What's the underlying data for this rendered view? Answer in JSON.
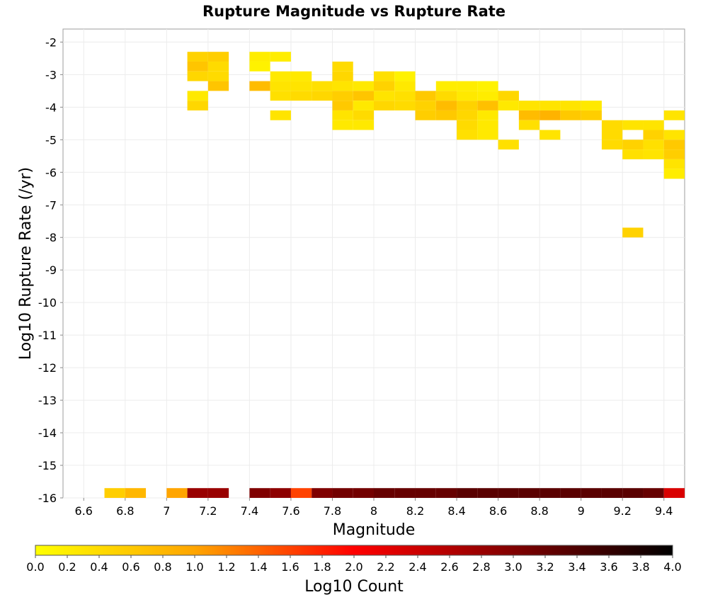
{
  "chart_data": {
    "type": "heatmap",
    "title": "Rupture Magnitude vs Rupture Rate",
    "xlabel": "Magnitude",
    "ylabel": "Log10 Rupture Rate (/yr)",
    "xlim": [
      6.5,
      9.5
    ],
    "ylim": [
      -16.0,
      -1.6
    ],
    "x_ticks": [
      "6.6",
      "6.8",
      "7",
      "7.2",
      "7.4",
      "7.6",
      "7.8",
      "8",
      "8.2",
      "8.4",
      "8.6",
      "8.8",
      "9",
      "9.2",
      "9.4"
    ],
    "y_ticks": [
      "-2",
      "-3",
      "-4",
      "-5",
      "-6",
      "-7",
      "-8",
      "-9",
      "-10",
      "-11",
      "-12",
      "-13",
      "-14",
      "-15",
      "-16"
    ],
    "bin_width_x": 0.1,
    "bin_width_y": 0.3,
    "grid": true,
    "colorbar": {
      "label": "Log10 Count",
      "range": [
        0.0,
        4.0
      ],
      "ticks": [
        "0.0",
        "0.2",
        "0.4",
        "0.6",
        "0.8",
        "1.0",
        "1.2",
        "1.4",
        "1.6",
        "1.8",
        "2.0",
        "2.2",
        "2.4",
        "2.6",
        "2.8",
        "3.0",
        "3.2",
        "3.4",
        "3.6",
        "3.8",
        "4.0"
      ],
      "position": "bottom"
    },
    "cells_columns": [
      "magnitude_bin_start",
      "log10_rate_bin_top",
      "log10_count"
    ],
    "cells": [
      [
        7.1,
        -2.3,
        0.5
      ],
      [
        7.2,
        -2.3,
        0.55
      ],
      [
        7.4,
        -2.3,
        0.2
      ],
      [
        7.5,
        -2.3,
        0.2
      ],
      [
        7.1,
        -2.6,
        0.65
      ],
      [
        7.2,
        -2.6,
        0.4
      ],
      [
        7.4,
        -2.6,
        0.15
      ],
      [
        7.1,
        -2.9,
        0.45
      ],
      [
        7.2,
        -2.9,
        0.4
      ],
      [
        7.5,
        -2.9,
        0.25
      ],
      [
        7.6,
        -2.9,
        0.25
      ],
      [
        7.8,
        -2.6,
        0.4
      ],
      [
        7.8,
        -2.9,
        0.45
      ],
      [
        8.0,
        -2.9,
        0.35
      ],
      [
        8.1,
        -2.9,
        0.15
      ],
      [
        7.2,
        -3.2,
        0.65
      ],
      [
        7.4,
        -3.2,
        0.75
      ],
      [
        7.5,
        -3.2,
        0.3
      ],
      [
        7.6,
        -3.2,
        0.3
      ],
      [
        7.7,
        -3.2,
        0.35
      ],
      [
        7.8,
        -3.2,
        0.3
      ],
      [
        7.9,
        -3.2,
        0.25
      ],
      [
        8.0,
        -3.2,
        0.5
      ],
      [
        8.1,
        -3.2,
        0.25
      ],
      [
        8.3,
        -3.2,
        0.2
      ],
      [
        8.4,
        -3.2,
        0.2
      ],
      [
        8.5,
        -3.2,
        0.15
      ],
      [
        7.1,
        -3.5,
        0.25
      ],
      [
        7.5,
        -3.5,
        0.35
      ],
      [
        7.6,
        -3.5,
        0.4
      ],
      [
        7.7,
        -3.5,
        0.45
      ],
      [
        7.8,
        -3.5,
        0.55
      ],
      [
        7.9,
        -3.5,
        0.65
      ],
      [
        8.0,
        -3.5,
        0.3
      ],
      [
        8.1,
        -3.5,
        0.35
      ],
      [
        8.2,
        -3.5,
        0.6
      ],
      [
        8.3,
        -3.5,
        0.4
      ],
      [
        8.4,
        -3.5,
        0.25
      ],
      [
        8.5,
        -3.5,
        0.2
      ],
      [
        8.6,
        -3.5,
        0.3
      ],
      [
        7.1,
        -3.8,
        0.45
      ],
      [
        7.8,
        -3.8,
        0.6
      ],
      [
        7.9,
        -3.8,
        0.25
      ],
      [
        8.0,
        -3.8,
        0.45
      ],
      [
        8.1,
        -3.8,
        0.4
      ],
      [
        8.2,
        -3.8,
        0.5
      ],
      [
        8.3,
        -3.8,
        0.75
      ],
      [
        8.4,
        -3.8,
        0.5
      ],
      [
        8.5,
        -3.8,
        0.7
      ],
      [
        8.6,
        -3.8,
        0.25
      ],
      [
        8.7,
        -3.8,
        0.3
      ],
      [
        8.8,
        -3.8,
        0.3
      ],
      [
        8.9,
        -3.8,
        0.3
      ],
      [
        9.0,
        -3.8,
        0.25
      ],
      [
        8.6,
        -3.5,
        0.45
      ],
      [
        7.5,
        -4.1,
        0.3
      ],
      [
        7.8,
        -4.1,
        0.3
      ],
      [
        7.9,
        -4.1,
        0.4
      ],
      [
        8.2,
        -4.1,
        0.55
      ],
      [
        8.3,
        -4.1,
        0.6
      ],
      [
        8.4,
        -4.1,
        0.45
      ],
      [
        8.5,
        -4.1,
        0.25
      ],
      [
        8.7,
        -4.1,
        0.75
      ],
      [
        8.8,
        -4.1,
        0.85
      ],
      [
        8.9,
        -4.1,
        0.6
      ],
      [
        9.0,
        -4.1,
        0.55
      ],
      [
        9.4,
        -4.1,
        0.3
      ],
      [
        7.8,
        -4.4,
        0.25
      ],
      [
        7.9,
        -4.4,
        0.25
      ],
      [
        8.4,
        -4.4,
        0.4
      ],
      [
        8.5,
        -4.4,
        0.25
      ],
      [
        8.7,
        -4.4,
        0.35
      ],
      [
        9.1,
        -4.4,
        0.4
      ],
      [
        9.2,
        -4.4,
        0.3
      ],
      [
        9.3,
        -4.4,
        0.3
      ],
      [
        8.4,
        -4.7,
        0.35
      ],
      [
        8.5,
        -4.7,
        0.25
      ],
      [
        8.8,
        -4.7,
        0.3
      ],
      [
        9.1,
        -4.7,
        0.4
      ],
      [
        9.3,
        -4.7,
        0.5
      ],
      [
        9.4,
        -4.7,
        0.3
      ],
      [
        8.6,
        -5.0,
        0.35
      ],
      [
        9.1,
        -5.0,
        0.4
      ],
      [
        9.2,
        -5.0,
        0.5
      ],
      [
        9.3,
        -5.0,
        0.35
      ],
      [
        9.4,
        -5.0,
        0.6
      ],
      [
        9.2,
        -5.3,
        0.35
      ],
      [
        9.3,
        -5.3,
        0.3
      ],
      [
        9.4,
        -5.3,
        0.55
      ],
      [
        9.4,
        -5.6,
        0.3
      ],
      [
        9.4,
        -5.9,
        0.2
      ],
      [
        9.2,
        -7.7,
        0.5
      ],
      [
        6.7,
        -15.7,
        0.55
      ],
      [
        6.8,
        -15.7,
        0.8
      ],
      [
        7.0,
        -15.7,
        1.0
      ],
      [
        7.1,
        -15.7,
        2.8
      ],
      [
        7.2,
        -15.7,
        2.8
      ],
      [
        7.4,
        -15.7,
        3.0
      ],
      [
        7.5,
        -15.7,
        2.9
      ],
      [
        7.6,
        -15.7,
        1.6
      ],
      [
        7.7,
        -15.7,
        3.0
      ],
      [
        7.8,
        -15.7,
        3.1
      ],
      [
        7.9,
        -15.7,
        3.1
      ],
      [
        8.0,
        -15.7,
        3.2
      ],
      [
        8.1,
        -15.7,
        3.2
      ],
      [
        8.2,
        -15.7,
        3.2
      ],
      [
        8.3,
        -15.7,
        3.2
      ],
      [
        8.4,
        -15.7,
        3.3
      ],
      [
        8.5,
        -15.7,
        3.3
      ],
      [
        8.6,
        -15.7,
        3.3
      ],
      [
        8.7,
        -15.7,
        3.3
      ],
      [
        8.8,
        -15.7,
        3.3
      ],
      [
        8.9,
        -15.7,
        3.3
      ],
      [
        9.0,
        -15.7,
        3.3
      ],
      [
        9.1,
        -15.7,
        3.3
      ],
      [
        9.2,
        -15.7,
        3.3
      ],
      [
        9.3,
        -15.7,
        3.2
      ],
      [
        9.4,
        -15.7,
        2.3
      ]
    ]
  }
}
